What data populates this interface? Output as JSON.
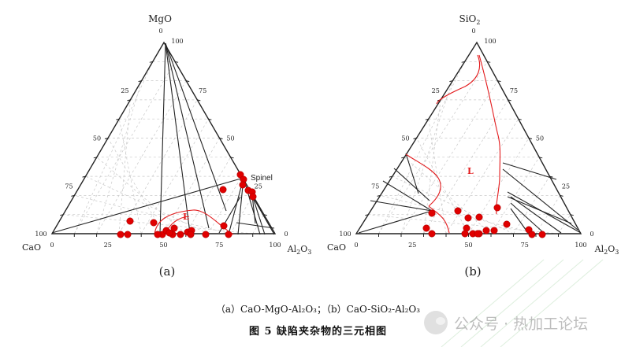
{
  "panels": [
    {
      "id": "a",
      "label": "(a)",
      "apex_top": "MgO",
      "vertex_left": "CaO",
      "vertex_right": "Al2O3",
      "apex_top_tick": "0",
      "apex_top_value": "100",
      "left_edge_ticks": [
        "25",
        "50",
        "75",
        "100"
      ],
      "right_edge_ticks": [
        "75",
        "50",
        "25",
        "0"
      ],
      "bottom_ticks": [
        "0",
        "25",
        "50",
        "75",
        "100"
      ],
      "region_label": "L",
      "annotation": "Spinel"
    },
    {
      "id": "b",
      "label": "(b)",
      "apex_top": "SiO2",
      "vertex_left": "CaO",
      "vertex_right": "Al2O3",
      "apex_top_tick": "0",
      "apex_top_value": "100",
      "left_edge_ticks": [
        "25",
        "50",
        "75",
        "100"
      ],
      "right_edge_ticks": [
        "75",
        "50",
        "25",
        "0"
      ],
      "bottom_ticks": [
        "0",
        "25",
        "50",
        "75",
        "100"
      ],
      "region_label": "L",
      "annotation": ""
    }
  ],
  "sub_caption": "（a）CaO-MgO-Al₂O₃；（b）CaO-SiO₂-Al₂O₃",
  "figure_caption": "图 5   缺陷夹杂物的三元相图",
  "watermark": "公众号 · 热加工论坛",
  "colors": {
    "axis": "#222222",
    "grid": "#c8c8c8",
    "liquidus": "#e31a1c",
    "points": "#e00000"
  }
}
